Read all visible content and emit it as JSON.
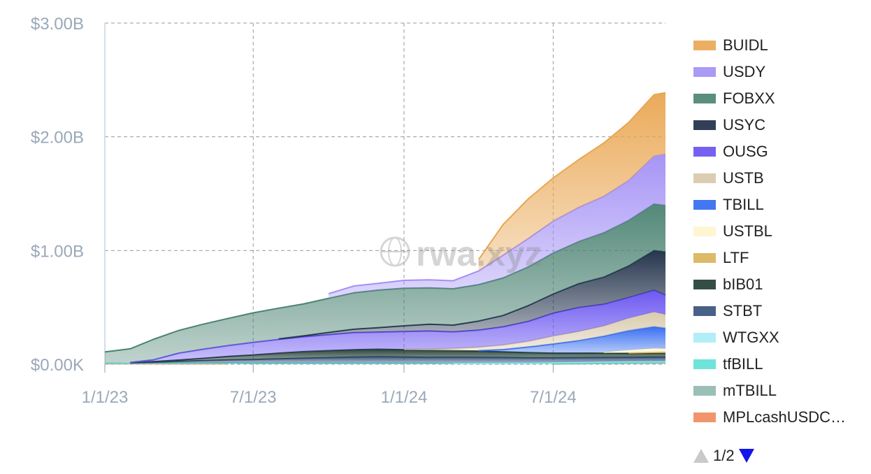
{
  "chart_data": {
    "type": "area",
    "stacked": true,
    "watermark": "rwa.xyz",
    "y_axis": {
      "ticks": [
        "$0.00K",
        "$1.00B",
        "$2.00B",
        "$3.00B"
      ],
      "tick_values": [
        0,
        1000000000,
        2000000000,
        3000000000
      ],
      "ylim": [
        0,
        3000000000
      ]
    },
    "x_axis": {
      "ticks": [
        "1/1/23",
        "7/1/23",
        "1/1/24",
        "7/1/24"
      ],
      "range": [
        "2023-01-01",
        "2024-11-15"
      ]
    },
    "grid": true,
    "legend_position": "right",
    "legend_page": "1/2",
    "x": [
      "2023-01-01",
      "2023-02-01",
      "2023-03-01",
      "2023-04-01",
      "2023-05-01",
      "2023-06-01",
      "2023-07-01",
      "2023-08-01",
      "2023-09-01",
      "2023-10-01",
      "2023-11-01",
      "2023-12-01",
      "2024-01-01",
      "2024-02-01",
      "2024-03-01",
      "2024-04-01",
      "2024-05-01",
      "2024-06-01",
      "2024-07-01",
      "2024-08-01",
      "2024-09-01",
      "2024-10-01",
      "2024-11-01",
      "2024-11-15"
    ],
    "series": [
      {
        "name": "MPLcashUSDC…",
        "color": "#f08a5d",
        "values": [
          0.004,
          0.004,
          0.004,
          0.004,
          0.004,
          0.004,
          0,
          0,
          0,
          0,
          0,
          0,
          0,
          0,
          0,
          0,
          0,
          0,
          0,
          0,
          0,
          0,
          0,
          0
        ]
      },
      {
        "name": "mTBILL",
        "color": "#8fb8ae",
        "values": [
          0,
          0,
          0,
          0,
          0,
          0,
          0,
          0,
          0,
          0,
          0,
          0,
          0,
          0,
          0,
          0,
          0,
          0,
          0.002,
          0.005,
          0.008,
          0.01,
          0.012,
          0.012
        ]
      },
      {
        "name": "tfBILL",
        "color": "#5ee0d6",
        "values": [
          0.004,
          0.005,
          0.005,
          0.006,
          0.006,
          0.007,
          0.007,
          0.008,
          0.008,
          0.008,
          0.008,
          0.008,
          0.008,
          0.008,
          0.008,
          0.008,
          0.009,
          0.009,
          0.009,
          0.009,
          0.009,
          0.009,
          0.009,
          0.009
        ]
      },
      {
        "name": "WTGXX",
        "color": "#a8ecf7",
        "values": [
          0,
          0,
          0,
          0,
          0,
          0,
          0,
          0,
          0,
          0,
          0,
          0,
          0,
          0,
          0.003,
          0.004,
          0.005,
          0.005,
          0.005,
          0.006,
          0.006,
          0.006,
          0.006,
          0.006
        ]
      },
      {
        "name": "STBT",
        "color": "#34507a",
        "values": [
          0,
          0.003,
          0.008,
          0.015,
          0.022,
          0.028,
          0.035,
          0.04,
          0.045,
          0.05,
          0.055,
          0.058,
          0.055,
          0.052,
          0.05,
          0.048,
          0.045,
          0.042,
          0.04,
          0.038,
          0.036,
          0.035,
          0.035,
          0.035
        ]
      },
      {
        "name": "bIB01",
        "color": "#1f3b2f",
        "values": [
          0,
          0.002,
          0.006,
          0.012,
          0.02,
          0.03,
          0.04,
          0.05,
          0.058,
          0.062,
          0.065,
          0.066,
          0.065,
          0.062,
          0.058,
          0.055,
          0.05,
          0.046,
          0.042,
          0.04,
          0.038,
          0.036,
          0.035,
          0.035
        ]
      },
      {
        "name": "LTF",
        "color": "#d9b357",
        "values": [
          0,
          0,
          0,
          0,
          0,
          0,
          0,
          0,
          0,
          0,
          0,
          0,
          0,
          0,
          0,
          0,
          0,
          0,
          0,
          0,
          0,
          0.004,
          0.008,
          0.01
        ]
      },
      {
        "name": "USTBL",
        "color": "#fdf5cc",
        "values": [
          0,
          0,
          0,
          0,
          0,
          0,
          0,
          0,
          0,
          0,
          0,
          0,
          0,
          0,
          0,
          0,
          0,
          0,
          0,
          0,
          0.01,
          0.025,
          0.035,
          0.03
        ]
      },
      {
        "name": "TBILL",
        "color": "#2f68f0",
        "values": [
          0,
          0,
          0,
          0,
          0,
          0,
          0,
          0,
          0,
          0,
          0,
          0,
          0,
          0,
          0,
          0.005,
          0.02,
          0.05,
          0.08,
          0.11,
          0.14,
          0.17,
          0.19,
          0.18
        ]
      },
      {
        "name": "USTB",
        "color": "#d8c8aa",
        "values": [
          0,
          0,
          0,
          0,
          0,
          0,
          0,
          0,
          0,
          0,
          0,
          0,
          0.005,
          0.01,
          0.02,
          0.03,
          0.04,
          0.05,
          0.07,
          0.08,
          0.09,
          0.11,
          0.13,
          0.12
        ]
      },
      {
        "name": "OUSG",
        "color": "#6650f0",
        "values": [
          0,
          0.002,
          0.015,
          0.06,
          0.08,
          0.095,
          0.11,
          0.12,
          0.13,
          0.14,
          0.15,
          0.15,
          0.155,
          0.16,
          0.145,
          0.15,
          0.16,
          0.175,
          0.2,
          0.21,
          0.19,
          0.18,
          0.19,
          0.17
        ]
      },
      {
        "name": "USYC",
        "color": "#1b2b45",
        "values": [
          0,
          0,
          0,
          0,
          0,
          0,
          0,
          0.005,
          0.01,
          0.02,
          0.03,
          0.04,
          0.05,
          0.06,
          0.06,
          0.08,
          0.1,
          0.14,
          0.17,
          0.21,
          0.24,
          0.28,
          0.35,
          0.38
        ]
      },
      {
        "name": "FOBXX",
        "color": "#4a8271",
        "values": [
          0.1,
          0.12,
          0.18,
          0.2,
          0.22,
          0.24,
          0.26,
          0.27,
          0.28,
          0.3,
          0.32,
          0.33,
          0.33,
          0.32,
          0.32,
          0.32,
          0.33,
          0.34,
          0.36,
          0.37,
          0.39,
          0.4,
          0.41,
          0.41
        ]
      },
      {
        "name": "USDY",
        "color": "#a28ff5",
        "values": [
          0,
          0,
          0,
          0,
          0,
          0,
          0,
          0,
          0,
          0.04,
          0.06,
          0.06,
          0.07,
          0.07,
          0.07,
          0.12,
          0.2,
          0.25,
          0.28,
          0.3,
          0.32,
          0.35,
          0.42,
          0.45
        ]
      },
      {
        "name": "BUIDL",
        "color": "#e9a651",
        "values": [
          0,
          0,
          0,
          0,
          0,
          0,
          0,
          0,
          0,
          0,
          0,
          0,
          0,
          0,
          0,
          0.1,
          0.27,
          0.35,
          0.38,
          0.42,
          0.47,
          0.51,
          0.54,
          0.54
        ]
      }
    ],
    "units": "billions USD"
  },
  "legend": {
    "items": [
      {
        "label": "BUIDL",
        "color": "#e9a651"
      },
      {
        "label": "USDY",
        "color": "#a28ff5"
      },
      {
        "label": "FOBXX",
        "color": "#4a8271"
      },
      {
        "label": "USYC",
        "color": "#1b2b45"
      },
      {
        "label": "OUSG",
        "color": "#6650f0"
      },
      {
        "label": "USTB",
        "color": "#d8c8aa"
      },
      {
        "label": "TBILL",
        "color": "#2f68f0"
      },
      {
        "label": "USTBL",
        "color": "#fdf5cc"
      },
      {
        "label": "LTF",
        "color": "#d9b357"
      },
      {
        "label": "bIB01",
        "color": "#1f3b2f"
      },
      {
        "label": "STBT",
        "color": "#34507a"
      },
      {
        "label": "WTGXX",
        "color": "#a8ecf7"
      },
      {
        "label": "tfBILL",
        "color": "#5ee0d6"
      },
      {
        "label": "mTBILL",
        "color": "#8fb8ae"
      },
      {
        "label": "MPLcashUSDC…",
        "color": "#f08a5d"
      }
    ]
  }
}
